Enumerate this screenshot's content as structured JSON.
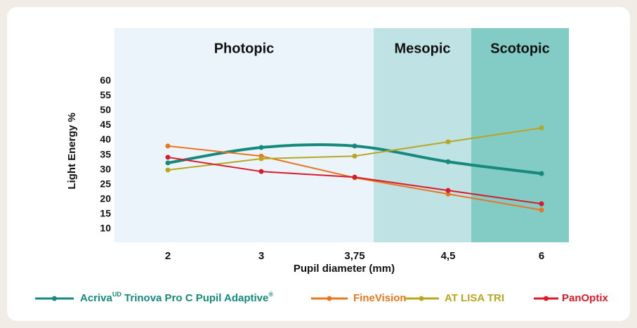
{
  "chart_data": {
    "type": "line",
    "zones": [
      {
        "name": "Photopic",
        "color": "#eaf4fa"
      },
      {
        "name": "Mesopic",
        "color": "#bfe3e5"
      },
      {
        "name": "Scotopic",
        "color": "#83cbc5"
      }
    ],
    "categories": [
      "2",
      "3",
      "3,75",
      "4,5",
      "6"
    ],
    "series": [
      {
        "name": [
          "Acriva",
          "UD",
          " Trinova Pro C Pupil Adaptive",
          "®"
        ],
        "color": "#158a7c",
        "smooth": true,
        "values": [
          32.3,
          37.5,
          38,
          32.7,
          28.7
        ]
      },
      {
        "name": "FineVision",
        "color": "#e8771f",
        "values": [
          38,
          34.6,
          27.3,
          21.8,
          16.4
        ]
      },
      {
        "name": "AT LISA TRI",
        "color": "#b8a61f",
        "values": [
          29.9,
          33.7,
          34.6,
          39.4,
          44.1
        ]
      },
      {
        "name": "PanOptix",
        "color": "#d81b2a",
        "values": [
          34.2,
          29.4,
          27.5,
          23,
          18.5
        ]
      }
    ],
    "ylabel": "Light Energy %",
    "xlabel": "Pupil diameter (mm)",
    "ylim": [
      5.5,
      77.8
    ],
    "yticks": [
      10,
      15,
      20,
      25,
      30,
      35,
      40,
      45,
      50,
      55,
      60
    ]
  }
}
